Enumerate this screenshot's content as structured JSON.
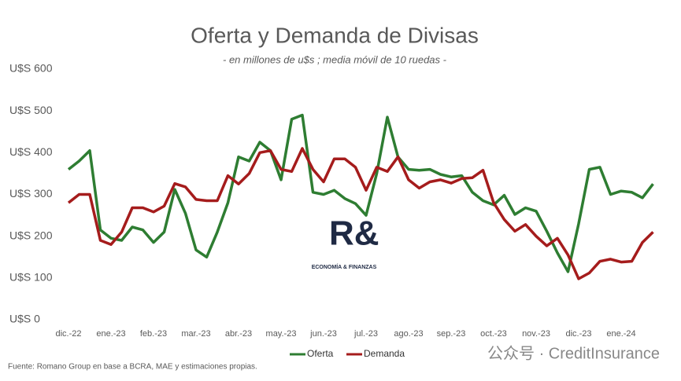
{
  "chart_data": {
    "type": "line",
    "title": "Oferta y Demanda de Divisas",
    "subtitle": "- en millones de u$s ; media móvil de 10 ruedas -",
    "source": "Fuente: Romano Group en base a BCRA, MAE y estimaciones propias.",
    "logo": {
      "mark": "R&",
      "text": "ECONOMÍA & FINANZAS"
    },
    "watermark": "公众号 · CreditInsurance",
    "legend": "bottom",
    "grid": false,
    "categories": [
      "dic.-22",
      null,
      null,
      null,
      "ene.-23",
      null,
      null,
      null,
      "feb.-23",
      null,
      null,
      null,
      "mar.-23",
      null,
      null,
      null,
      "abr.-23",
      null,
      null,
      null,
      "may.-23",
      null,
      null,
      null,
      "jun.-23",
      null,
      null,
      null,
      "jul.-23",
      null,
      null,
      null,
      "ago.-23",
      null,
      null,
      null,
      "sep.-23",
      null,
      null,
      null,
      "oct.-23",
      null,
      null,
      null,
      "nov.-23",
      null,
      null,
      null,
      "dic.-23",
      null,
      null,
      null,
      "ene.-24",
      null,
      null,
      null
    ],
    "series": [
      {
        "name": "Oferta",
        "color": "#2e7d32",
        "values": [
          360,
          380,
          405,
          215,
          195,
          190,
          222,
          215,
          185,
          210,
          312,
          255,
          167,
          150,
          210,
          280,
          390,
          380,
          425,
          405,
          335,
          480,
          490,
          305,
          300,
          310,
          290,
          278,
          250,
          350,
          485,
          390,
          360,
          358,
          360,
          348,
          342,
          345,
          305,
          285,
          275,
          298,
          252,
          268,
          260,
          212,
          160,
          115,
          230,
          360,
          365,
          300,
          308,
          305,
          292,
          325
        ]
      },
      {
        "name": "Demanda",
        "color": "#a51c1c",
        "values": [
          280,
          300,
          300,
          190,
          180,
          210,
          268,
          268,
          258,
          272,
          326,
          318,
          288,
          285,
          285,
          345,
          325,
          350,
          400,
          405,
          360,
          355,
          410,
          360,
          330,
          385,
          385,
          365,
          310,
          365,
          355,
          390,
          335,
          315,
          330,
          335,
          327,
          338,
          340,
          358,
          280,
          240,
          212,
          228,
          200,
          177,
          195,
          155,
          98,
          112,
          140,
          145,
          138,
          140,
          185,
          210
        ]
      }
    ],
    "ylim": [
      0,
      600
    ],
    "yticks": [
      {
        "value": 0,
        "label": "U$S 0"
      },
      {
        "value": 100,
        "label": "U$S 100"
      },
      {
        "value": 200,
        "label": "U$S 200"
      },
      {
        "value": 300,
        "label": "U$S 300"
      },
      {
        "value": 400,
        "label": "U$S 400"
      },
      {
        "value": 500,
        "label": "U$S 500"
      },
      {
        "value": 600,
        "label": "U$S 600"
      }
    ]
  }
}
